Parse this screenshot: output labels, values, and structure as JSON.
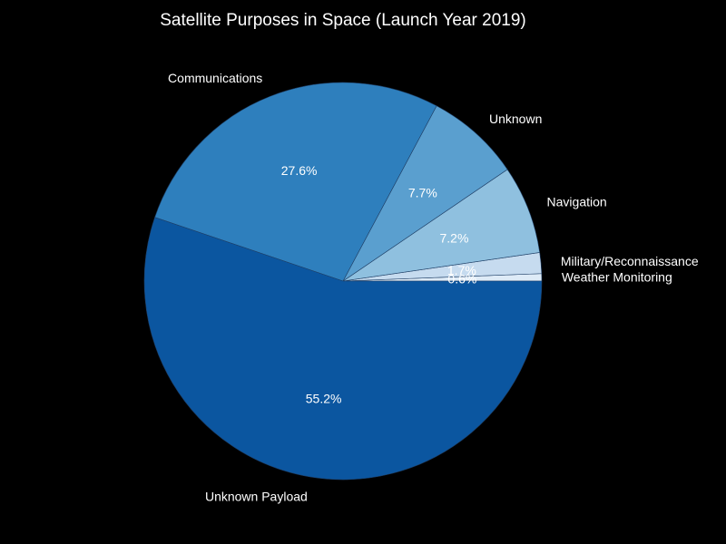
{
  "chart_data": {
    "type": "pie",
    "title": "Satellite Purposes in Space (Launch Year 2019)",
    "slices": [
      {
        "label": "Weather Monitoring",
        "value": 0.6,
        "pct_label": "0.6%",
        "color": "#deebf7"
      },
      {
        "label": "Military/Reconnaissance",
        "value": 1.7,
        "pct_label": "1.7%",
        "color": "#c6dbef"
      },
      {
        "label": "Navigation",
        "value": 7.2,
        "pct_label": "7.2%",
        "color": "#8fc0df"
      },
      {
        "label": "Unknown",
        "value": 7.7,
        "pct_label": "7.7%",
        "color": "#5a9fcf"
      },
      {
        "label": "Communications",
        "value": 27.6,
        "pct_label": "27.6%",
        "color": "#2e7fbd"
      },
      {
        "label": "Unknown Payload",
        "value": 55.2,
        "pct_label": "55.2%",
        "color": "#0b56a0"
      }
    ],
    "start_angle": "3 o'clock",
    "direction": "counterclockwise",
    "edge_color": "#1f3f66",
    "background": "#000000",
    "text_color": "#ffffff"
  }
}
